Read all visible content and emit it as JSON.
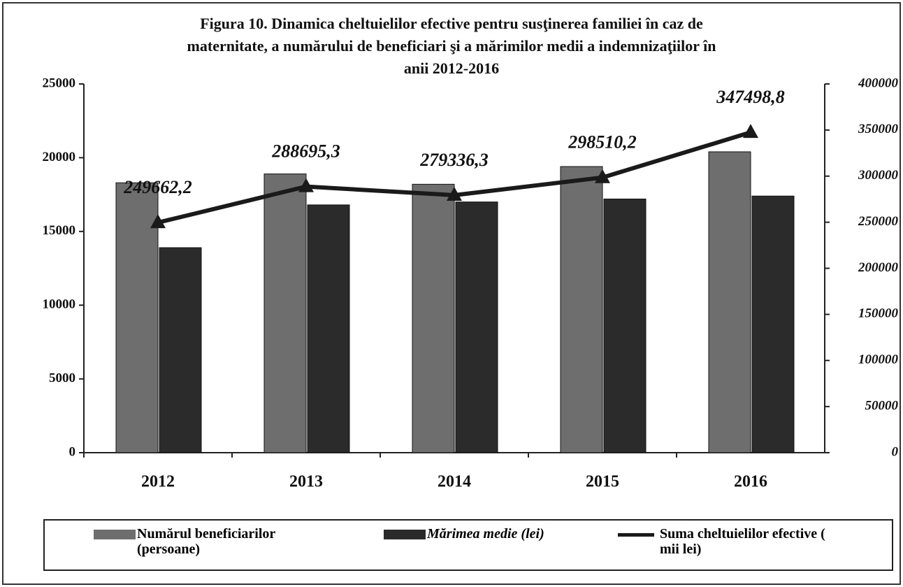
{
  "chart_data": {
    "type": "bar+line",
    "title": [
      "Figura 10. Dinamica cheltuielilor efective pentru susţinerea familiei în caz de",
      "maternitate, a numărului de beneficiari şi a mărimilor medii a indemnizaţiilor în",
      "anii 2012-2016"
    ],
    "categories": [
      "2012",
      "2013",
      "2014",
      "2015",
      "2016"
    ],
    "series": [
      {
        "name": "Numărul beneficiarilor (persoane)",
        "color": "#6e6e6e",
        "type": "bar",
        "values": [
          18300,
          18900,
          18200,
          19400,
          20400
        ]
      },
      {
        "name": "Mărimea medie (lei)",
        "color": "#2b2b2b",
        "type": "bar",
        "values": [
          13900,
          16800,
          17000,
          17200,
          17400
        ]
      },
      {
        "name": "Suma cheltuielilor efective ( mii lei)",
        "color": "#1a1a1a",
        "type": "line",
        "axis": "y2",
        "values": [
          249662.2,
          288695.3,
          279336.3,
          298510.2,
          347498.8
        ],
        "value_labels": [
          "249662,2",
          "288695,3",
          "279336,3",
          "298510,2",
          "347498,8"
        ]
      }
    ],
    "ylim": [
      0,
      25000
    ],
    "yticks": [
      0,
      5000,
      10000,
      15000,
      20000,
      25000
    ],
    "y2lim": [
      0,
      400000
    ],
    "y2ticks": [
      0,
      50000,
      100000,
      150000,
      200000,
      250000,
      300000,
      350000,
      400000
    ],
    "legend": "bottom"
  }
}
